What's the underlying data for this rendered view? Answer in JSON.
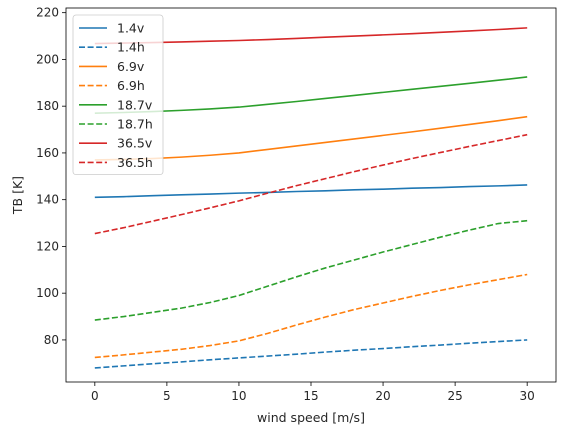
{
  "chart_data": {
    "type": "line",
    "xlabel": "wind speed [m/s]",
    "ylabel": "TB [K]",
    "xlim": [
      -2,
      32
    ],
    "ylim": [
      62,
      222
    ],
    "xticks": [
      0,
      5,
      10,
      15,
      20,
      25,
      30
    ],
    "yticks": [
      80,
      100,
      120,
      140,
      160,
      180,
      200,
      220
    ],
    "grid": false,
    "legend_position": "top-left",
    "x": [
      0,
      2,
      4,
      6,
      8,
      10,
      12,
      14,
      16,
      18,
      20,
      22,
      24,
      26,
      28,
      30
    ],
    "series": [
      {
        "name": "1.4v",
        "color": "#1f77b4",
        "dash": "solid",
        "values": [
          141.0,
          141.3,
          141.7,
          142.1,
          142.4,
          142.8,
          143.1,
          143.5,
          143.8,
          144.2,
          144.5,
          144.9,
          145.2,
          145.6,
          145.9,
          146.3
        ]
      },
      {
        "name": "1.4h",
        "color": "#1f77b4",
        "dash": "dashed",
        "values": [
          68.0,
          68.9,
          69.8,
          70.6,
          71.5,
          72.3,
          73.1,
          73.9,
          74.8,
          75.6,
          76.3,
          77.1,
          77.8,
          78.6,
          79.3,
          80.0
        ]
      },
      {
        "name": "6.9v",
        "color": "#ff7f0e",
        "dash": "solid",
        "values": [
          157.0,
          157.2,
          157.6,
          158.2,
          159.0,
          160.0,
          161.5,
          163.0,
          164.5,
          166.0,
          167.5,
          169.0,
          170.6,
          172.2,
          173.8,
          175.5
        ]
      },
      {
        "name": "6.9h",
        "color": "#ff7f0e",
        "dash": "dashed",
        "values": [
          72.5,
          73.6,
          74.8,
          76.0,
          77.6,
          79.6,
          82.8,
          86.4,
          89.8,
          93.0,
          95.8,
          98.6,
          101.2,
          103.6,
          105.8,
          108.0
        ]
      },
      {
        "name": "18.7v",
        "color": "#2ca02c",
        "dash": "solid",
        "values": [
          177.0,
          177.3,
          177.7,
          178.2,
          178.8,
          179.6,
          180.8,
          182.0,
          183.3,
          184.6,
          185.9,
          187.2,
          188.5,
          189.8,
          191.1,
          192.5
        ]
      },
      {
        "name": "18.7h",
        "color": "#2ca02c",
        "dash": "dashed",
        "values": [
          88.5,
          90.0,
          91.8,
          93.6,
          96.0,
          99.0,
          103.0,
          107.0,
          110.8,
          114.2,
          117.6,
          120.8,
          124.0,
          127.0,
          129.8,
          131.0
        ]
      },
      {
        "name": "36.5v",
        "color": "#d62728",
        "dash": "solid",
        "values": [
          206.8,
          207.0,
          207.2,
          207.5,
          207.8,
          208.1,
          208.5,
          209.0,
          209.5,
          210.0,
          210.5,
          211.0,
          211.6,
          212.2,
          212.8,
          213.5
        ]
      },
      {
        "name": "36.5h",
        "color": "#d62728",
        "dash": "dashed",
        "values": [
          125.5,
          128.0,
          130.8,
          133.6,
          136.5,
          139.5,
          142.8,
          146.0,
          149.0,
          152.0,
          154.8,
          157.6,
          160.2,
          162.8,
          165.3,
          167.8
        ]
      }
    ]
  }
}
